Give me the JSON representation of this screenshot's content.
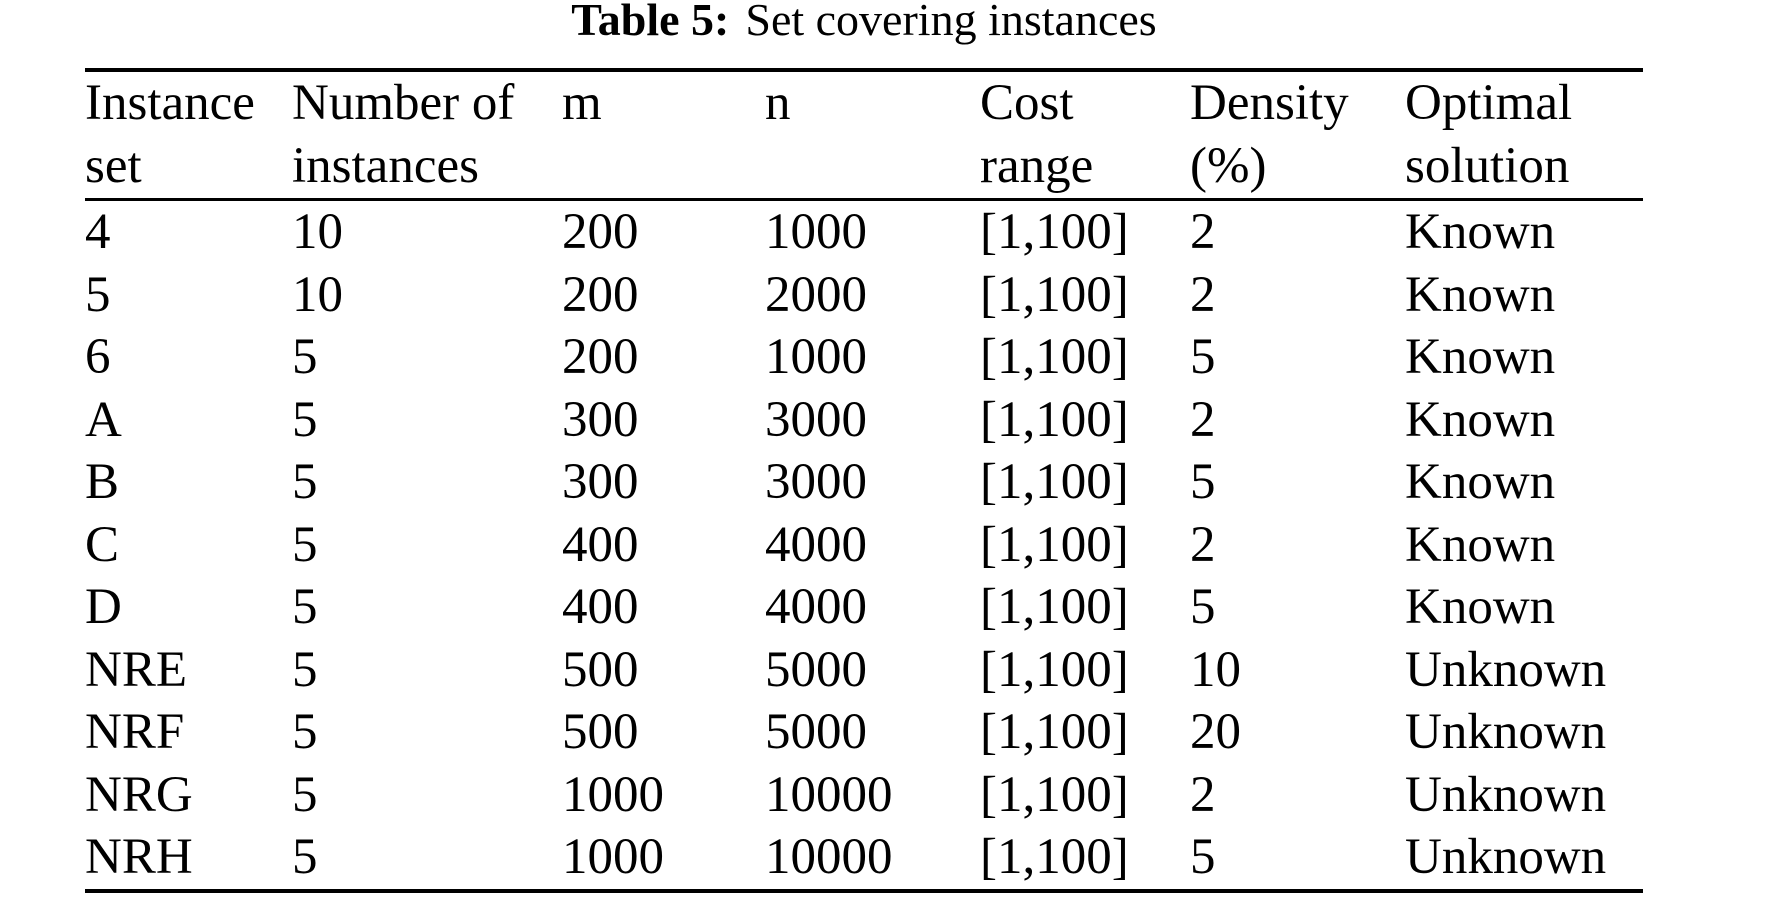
{
  "title": {
    "label": "Table 5:",
    "text": "Set covering instances"
  },
  "table": {
    "columns": [
      {
        "key": "instance-set",
        "label_line1": "Instance",
        "label_line2": "set"
      },
      {
        "key": "number-of-instances",
        "label_line1": "Number of",
        "label_line2": "instances"
      },
      {
        "key": "m",
        "label_line1": "m",
        "label_line2": ""
      },
      {
        "key": "n",
        "label_line1": "n",
        "label_line2": ""
      },
      {
        "key": "cost-range",
        "label_line1": "Cost",
        "label_line2": "range"
      },
      {
        "key": "density-percent",
        "label_line1": "Density",
        "label_line2": "(%)"
      },
      {
        "key": "optimal-solution",
        "label_line1": "Optimal",
        "label_line2": "solution"
      }
    ],
    "rows": [
      [
        "4",
        "10",
        "200",
        "1000",
        "[1,100]",
        "2",
        "Known"
      ],
      [
        "5",
        "10",
        "200",
        "2000",
        "[1,100]",
        "2",
        "Known"
      ],
      [
        "6",
        "5",
        "200",
        "1000",
        "[1,100]",
        "5",
        "Known"
      ],
      [
        "A",
        "5",
        "300",
        "3000",
        "[1,100]",
        "2",
        "Known"
      ],
      [
        "B",
        "5",
        "300",
        "3000",
        "[1,100]",
        "5",
        "Known"
      ],
      [
        "C",
        "5",
        "400",
        "4000",
        "[1,100]",
        "2",
        "Known"
      ],
      [
        "D",
        "5",
        "400",
        "4000",
        "[1,100]",
        "5",
        "Known"
      ],
      [
        "NRE",
        "5",
        "500",
        "5000",
        "[1,100]",
        "10",
        "Unknown"
      ],
      [
        "NRF",
        "5",
        "500",
        "5000",
        "[1,100]",
        "20",
        "Unknown"
      ],
      [
        "NRG",
        "5",
        "1000",
        "10000",
        "[1,100]",
        "2",
        "Unknown"
      ],
      [
        "NRH",
        "5",
        "1000",
        "10000",
        "[1,100]",
        "5",
        "Unknown"
      ]
    ]
  },
  "chart_data": {
    "type": "table",
    "title": "Table 5: Set covering instances",
    "columns": [
      "Instance set",
      "Number of instances",
      "m",
      "n",
      "Cost range",
      "Density (%)",
      "Optimal solution"
    ],
    "rows": [
      [
        "4",
        10,
        200,
        1000,
        "[1,100]",
        2,
        "Known"
      ],
      [
        "5",
        10,
        200,
        2000,
        "[1,100]",
        2,
        "Known"
      ],
      [
        "6",
        5,
        200,
        1000,
        "[1,100]",
        5,
        "Known"
      ],
      [
        "A",
        5,
        300,
        3000,
        "[1,100]",
        2,
        "Known"
      ],
      [
        "B",
        5,
        300,
        3000,
        "[1,100]",
        5,
        "Known"
      ],
      [
        "C",
        5,
        400,
        4000,
        "[1,100]",
        2,
        "Known"
      ],
      [
        "D",
        5,
        400,
        4000,
        "[1,100]",
        5,
        "Known"
      ],
      [
        "NRE",
        5,
        500,
        5000,
        "[1,100]",
        10,
        "Unknown"
      ],
      [
        "NRF",
        5,
        500,
        5000,
        "[1,100]",
        20,
        "Unknown"
      ],
      [
        "NRG",
        5,
        1000,
        10000,
        "[1,100]",
        2,
        "Unknown"
      ],
      [
        "NRH",
        5,
        1000,
        10000,
        "[1,100]",
        5,
        "Unknown"
      ]
    ]
  },
  "colors": {
    "background": "#ffffff",
    "text": "#000000",
    "rule": "#000000"
  }
}
